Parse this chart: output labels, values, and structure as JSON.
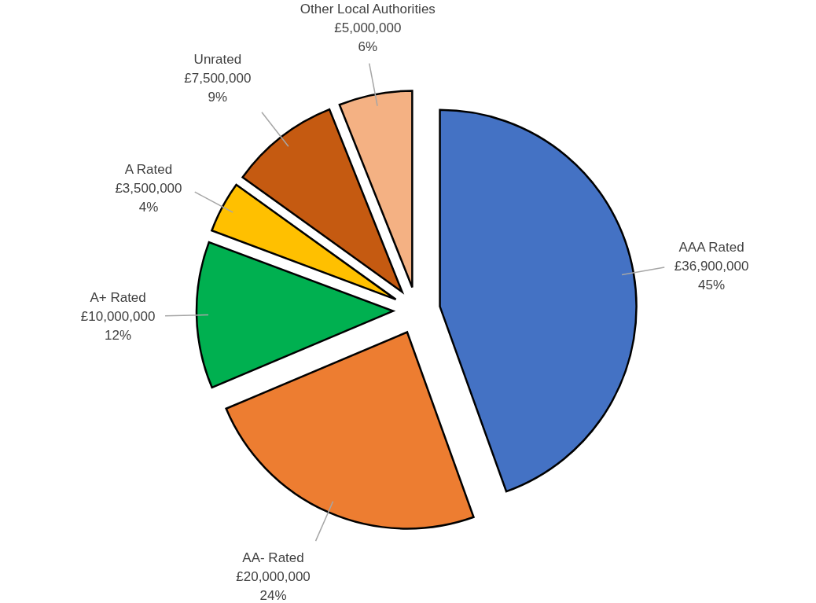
{
  "chart_data": {
    "type": "pie",
    "categories": [
      "AAA Rated",
      "AA- Rated",
      "A+ Rated",
      "A Rated",
      "Unrated",
      "Other Local Authorities"
    ],
    "values": [
      36900000,
      20000000,
      10000000,
      3500000,
      7500000,
      5000000
    ],
    "colors": [
      "#4472c4",
      "#ed7d31",
      "#00b050",
      "#ffc000",
      "#c55a11",
      "#f4b183"
    ],
    "value_labels": [
      "£36,900,000\n45%",
      "£20,000,000\n24%",
      "£10,000,000\n12%",
      "£3,500,000\n4%",
      "£7,500,000\n9%",
      "£5,000,000\n6%"
    ]
  }
}
